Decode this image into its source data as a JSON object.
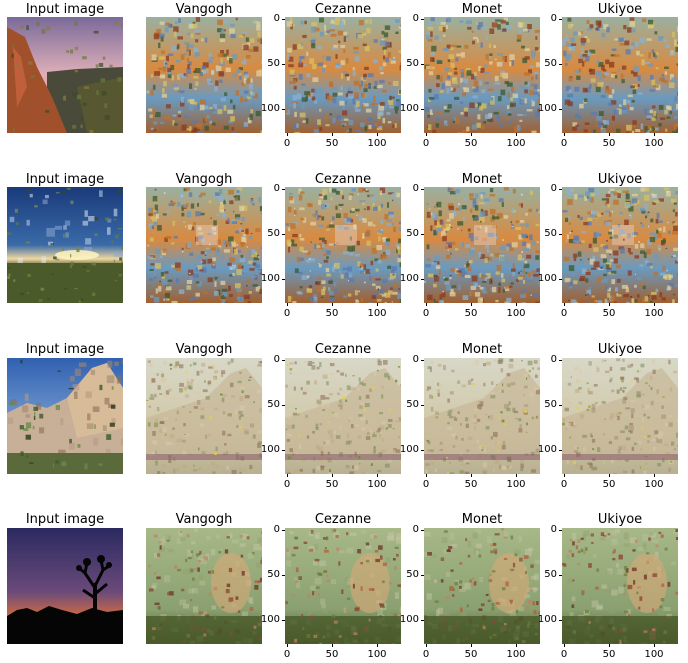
{
  "rows": [
    {
      "titles": [
        "Input image",
        "Vangogh",
        "Cezanne",
        "Monet",
        "Ukiyoe"
      ],
      "axis_panels": [
        "Cezanne",
        "Monet",
        "Ukiyoe"
      ],
      "ytick_labels": [
        "0",
        "50",
        "100"
      ],
      "xtick_labels": [
        "0",
        "50",
        "100"
      ]
    },
    {
      "titles": [
        "Input image",
        "Vangogh",
        "Cezanne",
        "Monet",
        "Ukiyoe"
      ],
      "axis_panels": [
        "Cezanne",
        "Monet",
        "Ukiyoe"
      ],
      "ytick_labels": [
        "0",
        "50",
        "100"
      ],
      "xtick_labels": [
        "0",
        "50",
        "100"
      ]
    },
    {
      "titles": [
        "Input image",
        "Vangogh",
        "Cezanne",
        "Monet",
        "Ukiyoe"
      ],
      "axis_panels": [
        "Cezanne",
        "Monet",
        "Ukiyoe"
      ],
      "ytick_labels": [
        "0",
        "50",
        "100"
      ],
      "xtick_labels": [
        "0",
        "50",
        "100"
      ]
    },
    {
      "titles": [
        "Input image",
        "Vangogh",
        "Cezanne",
        "Monet",
        "Ukiyoe"
      ],
      "axis_panels": [
        "Cezanne",
        "Monet",
        "Ukiyoe"
      ],
      "ytick_labels": [
        "0",
        "50",
        "100"
      ],
      "xtick_labels": [
        "0",
        "50",
        "100"
      ]
    }
  ],
  "scene_names": [
    "desert-sunset-rocks",
    "sky-horizon-sunrise",
    "boulders-blue-sky",
    "joshua-tree-silhouette-dusk"
  ],
  "palette": {
    "sunset_sky": "#b8a0b0",
    "desert_rock": "#a0502a",
    "blue_sky": "#3a6aa8",
    "grass": "#5a6a2a",
    "boulder": "#c8b098",
    "night_sky": "#2a2a60",
    "silhouette": "#050505",
    "glow": "#e0703a",
    "style_green": "#8aa070",
    "style_orange": "#d88a40",
    "style_blue": "#6a9ac0"
  }
}
